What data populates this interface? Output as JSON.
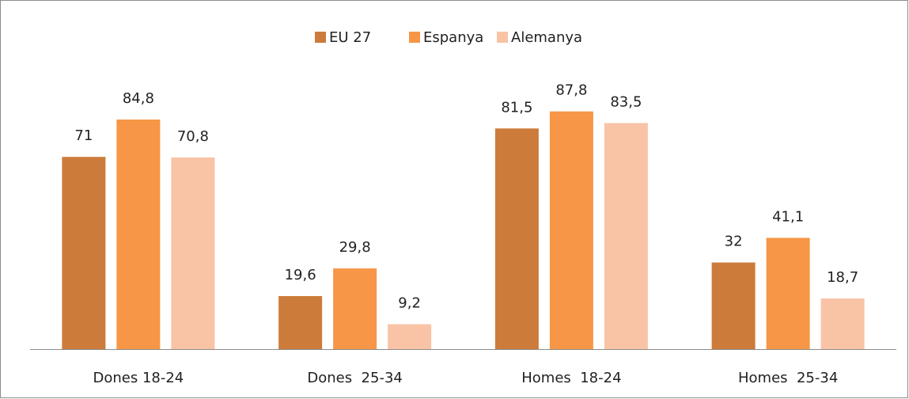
{
  "chart_data": {
    "type": "bar",
    "categories": [
      "Dones 18-24",
      "Dones  25-34",
      "Homes  18-24",
      "Homes  25-34"
    ],
    "series": [
      {
        "name": "EU 27",
        "color": "#cd7b3a",
        "values": [
          71,
          19.6,
          81.5,
          32
        ],
        "value_labels": [
          "71",
          "19,6",
          "81,5",
          "32"
        ]
      },
      {
        "name": "Espanya",
        "color": "#f79646",
        "values": [
          84.8,
          29.8,
          87.8,
          41.1
        ],
        "value_labels": [
          "84,8",
          "29,8",
          "87,8",
          "41,1"
        ]
      },
      {
        "name": "Alemanya",
        "color": "#f9c3a6",
        "values": [
          70.8,
          9.2,
          83.5,
          18.7
        ],
        "value_labels": [
          "70,8",
          "9,2",
          "83,5",
          "18,7"
        ]
      }
    ],
    "ylim": [
      0,
      100
    ],
    "legend": "top"
  }
}
